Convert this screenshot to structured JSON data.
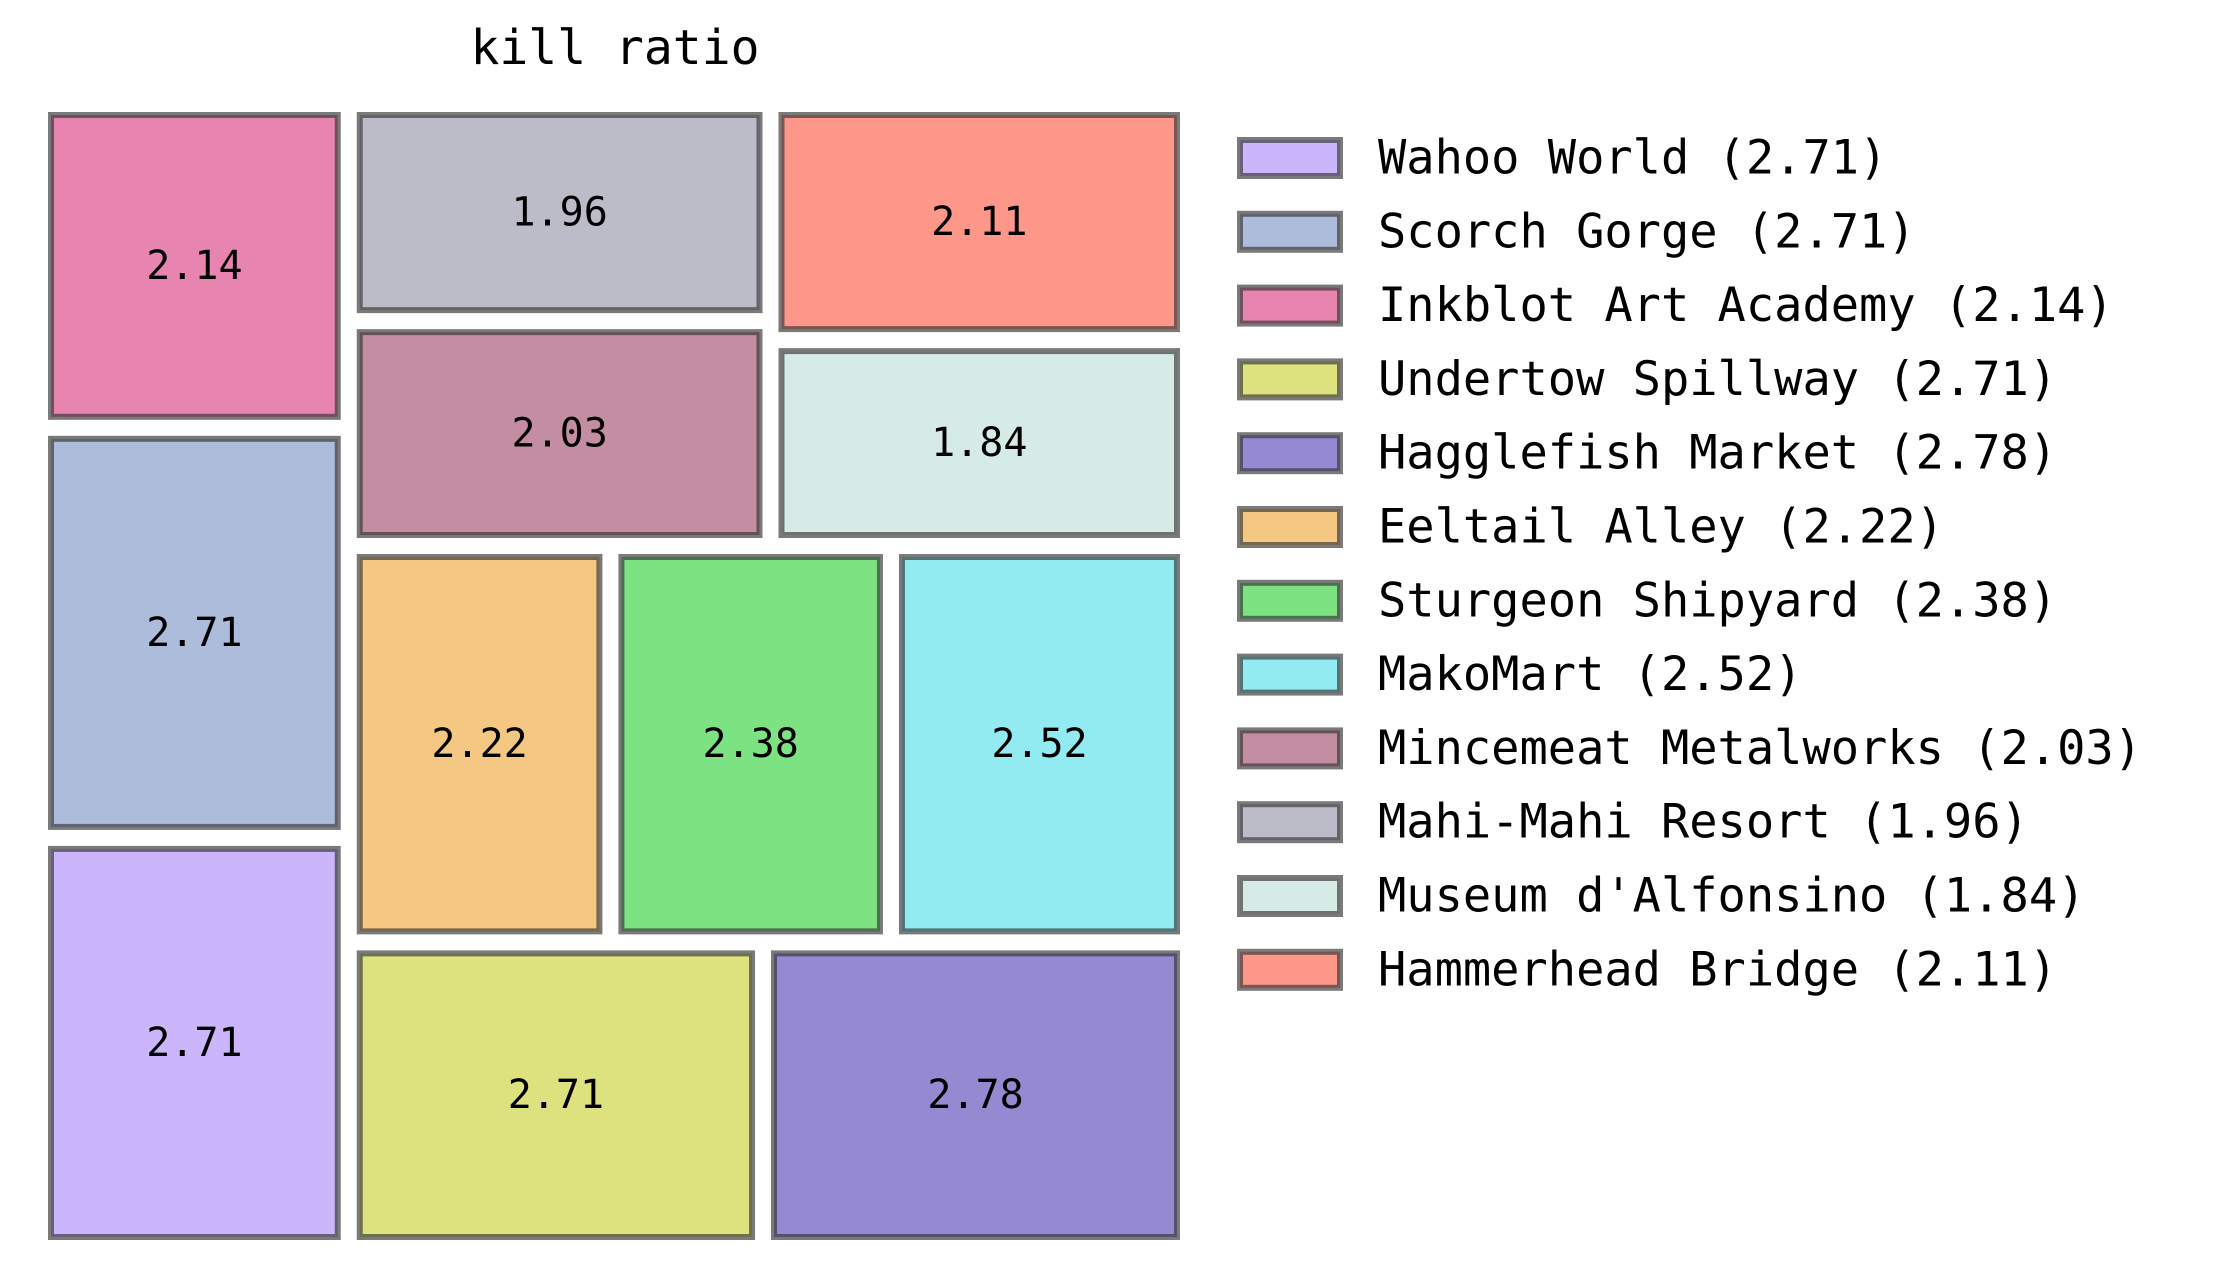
{
  "chart_data": {
    "type": "treemap",
    "title": "kill ratio",
    "items": [
      {
        "name": "Wahoo World",
        "value": 2.71,
        "color": "#cbb6fb",
        "label": "2.71",
        "legend": "Wahoo World (2.71)"
      },
      {
        "name": "Scorch Gorge",
        "value": 2.71,
        "color": "#aebcdb",
        "label": "2.71",
        "legend": "Scorch Gorge (2.71)"
      },
      {
        "name": "Inkblot Art Academy",
        "value": 2.14,
        "color": "#e884b0",
        "label": "2.14",
        "legend": "Inkblot Art Academy (2.14)"
      },
      {
        "name": "Undertow Spillway",
        "value": 2.71,
        "color": "#dde27f",
        "label": "2.71",
        "legend": "Undertow Spillway (2.71)"
      },
      {
        "name": "Hagglefish Market",
        "value": 2.78,
        "color": "#958ad1",
        "label": "2.78",
        "legend": "Hagglefish Market (2.78)"
      },
      {
        "name": "Eeltail Alley",
        "value": 2.22,
        "color": "#f4c782",
        "label": "2.22",
        "legend": "Eeltail Alley (2.22)"
      },
      {
        "name": "Sturgeon Shipyard",
        "value": 2.38,
        "color": "#7de281",
        "label": "2.38",
        "legend": "Sturgeon Shipyard (2.38)"
      },
      {
        "name": "MakoMart",
        "value": 2.52,
        "color": "#92ebf1",
        "label": "2.52",
        "legend": "MakoMart (2.52)"
      },
      {
        "name": "Mincemeat Metalworks",
        "value": 2.03,
        "color": "#c48ea2",
        "label": "2.03",
        "legend": "Mincemeat Metalworks (2.03)"
      },
      {
        "name": "Mahi-Mahi Resort",
        "value": 1.96,
        "color": "#bcbcc9",
        "label": "1.96",
        "legend": "Mahi-Mahi Resort (1.96)"
      },
      {
        "name": "Museum d'Alfonsino",
        "value": 1.84,
        "color": "#d6ebe6",
        "label": "1.84",
        "legend": "Museum d'Alfonsino (1.84)"
      },
      {
        "name": "Hammerhead Bridge",
        "value": 2.11,
        "color": "#fc978a",
        "label": "2.11",
        "legend": "Hammerhead Bridge (2.11)"
      }
    ],
    "legend_position": "right",
    "grid": false
  }
}
